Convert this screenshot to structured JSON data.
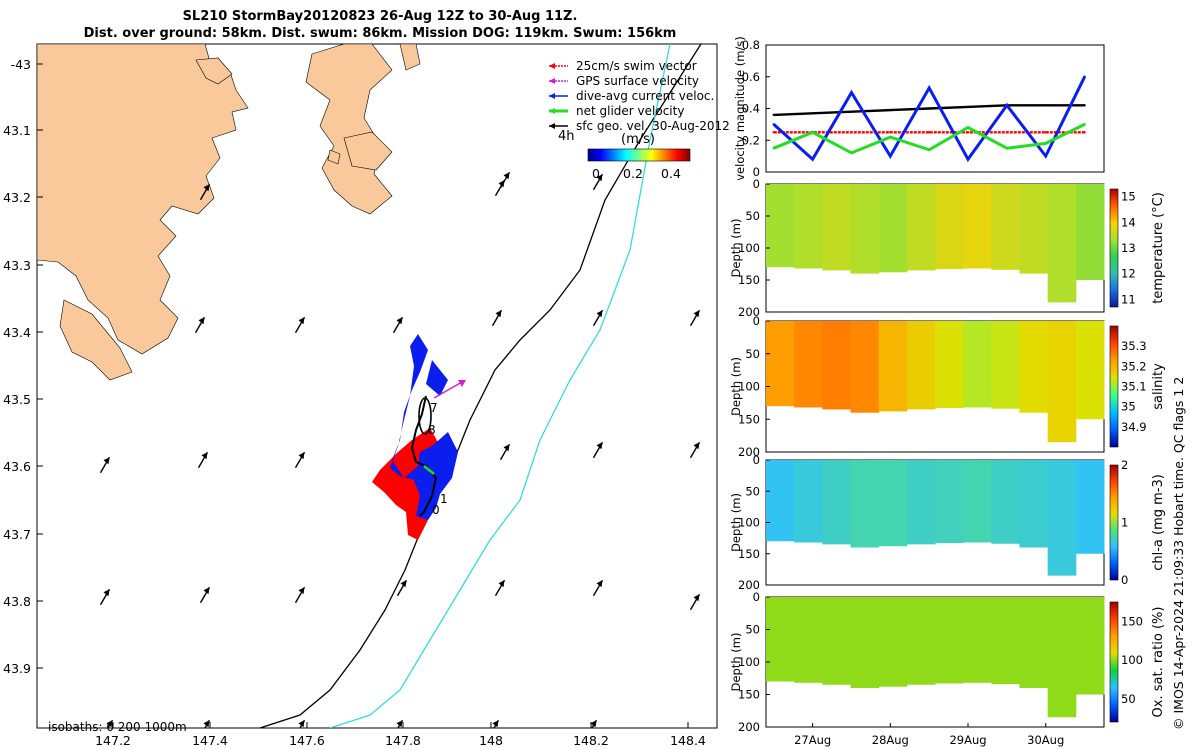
{
  "header": {
    "line1": "SL210 StormBay20120823 26-Aug 12Z to 30-Aug 11Z.",
    "line2": "Dist. over ground: 58km. Dist. swum: 86km. Mission DOG: 119km. Swum: 156km"
  },
  "credit": "© IMOS 14-Apr-2024 21:09:33 Hobart time. QC flags 1  2",
  "colors": {
    "land": "#f9c99c",
    "swim_vector": "#ff0000",
    "gps_velocity": "#d21cd2",
    "dive_avg": "#0a1ef0",
    "net_glider": "#22dd22",
    "sfc_geo": "#000000",
    "isobath_200": "#000000",
    "isobath_1000": "#33dddd"
  },
  "map": {
    "xticks": [
      "147.2",
      "147.4",
      "147.6",
      "147.8",
      "148",
      "148.2",
      "148.4"
    ],
    "yticks": [
      "-43",
      "43.1",
      "43.2",
      "43.3",
      "43.4",
      "43.5",
      "43.6",
      "43.7",
      "43.8",
      "43.9"
    ],
    "legend": [
      {
        "label": "25cm/s swim vector",
        "color": "#ff0000"
      },
      {
        "label": "GPS surface velocity",
        "color": "#d21cd2"
      },
      {
        "label": "dive-avg current veloc.",
        "color": "#0a1ef0"
      },
      {
        "label": "net glider velocity",
        "color": "#22dd22"
      },
      {
        "label": "sfc geo. vel. 30-Aug-2012",
        "color": "#000000"
      }
    ],
    "colorbar_left_label": "4h",
    "colorbar_unit": "(m/s)",
    "colorbar_ticks": [
      "0",
      "0.2",
      "0.4"
    ],
    "isobath_label": "isobaths: 0   200  1000m",
    "track_labels": [
      "7",
      "8",
      "1",
      "0"
    ]
  },
  "chart_data": [
    {
      "type": "line",
      "title": "",
      "ylabel": "velocity magnitude (m/s)",
      "ylim": [
        0,
        0.8
      ],
      "yticks": [
        "0",
        "0.2",
        "0.4",
        "0.6",
        "0.8"
      ],
      "x_days": [
        26.5,
        27.0,
        27.5,
        28.0,
        28.5,
        29.0,
        29.5,
        30.0,
        30.5
      ],
      "series": [
        {
          "name": "sfc geo. vel.",
          "color": "#000000",
          "values": [
            0.36,
            0.37,
            0.38,
            0.39,
            0.4,
            0.41,
            0.42,
            0.42,
            0.42
          ]
        },
        {
          "name": "swim vector",
          "color": "#ff0000",
          "values": [
            0.25,
            0.25,
            0.25,
            0.25,
            0.25,
            0.25,
            0.25,
            0.25,
            0.25
          ]
        },
        {
          "name": "dive-avg current",
          "color": "#0a1ef0",
          "values": [
            0.3,
            0.08,
            0.5,
            0.1,
            0.53,
            0.08,
            0.42,
            0.1,
            0.6
          ]
        },
        {
          "name": "net glider velocity",
          "color": "#22dd22",
          "values": [
            0.15,
            0.25,
            0.12,
            0.22,
            0.14,
            0.28,
            0.15,
            0.18,
            0.3
          ]
        }
      ]
    },
    {
      "type": "heatmap",
      "ylabel": "Depth (m)",
      "clabel": "temperature (°C)",
      "ylim": [
        200,
        0
      ],
      "yticks": [
        "0",
        "50",
        "100",
        "150",
        "200"
      ],
      "cticks": [
        "15",
        "14",
        "13",
        "12",
        "11"
      ],
      "xticks": [
        "27Aug",
        "28Aug",
        "29Aug",
        "30Aug"
      ],
      "crange": [
        10.7,
        15.3
      ],
      "columns": [
        13.3,
        13.4,
        13.5,
        13.4,
        13.3,
        13.5,
        13.7,
        13.8,
        13.6,
        13.5,
        13.4,
        13.2
      ]
    },
    {
      "type": "heatmap",
      "ylabel": "Depth (m)",
      "clabel": "salinity",
      "ylim": [
        200,
        0
      ],
      "yticks": [
        "0",
        "50",
        "100",
        "150",
        "200"
      ],
      "cticks": [
        "35.3",
        "35.2",
        "35.1",
        "35",
        "34.9"
      ],
      "xticks": [
        "27Aug",
        "28Aug",
        "29Aug",
        "30Aug"
      ],
      "crange": [
        34.8,
        35.4
      ],
      "columns": [
        35.23,
        35.25,
        35.26,
        35.25,
        35.2,
        35.17,
        35.14,
        35.12,
        35.13,
        35.15,
        35.16,
        35.14
      ]
    },
    {
      "type": "heatmap",
      "ylabel": "Depth (m)",
      "clabel": "chl-a (mg m-3)",
      "ylim": [
        200,
        0
      ],
      "yticks": [
        "0",
        "50",
        "100",
        "150",
        "200"
      ],
      "cticks": [
        "2",
        "1",
        "0"
      ],
      "xticks": [
        "27Aug",
        "28Aug",
        "29Aug",
        "30Aug"
      ],
      "crange": [
        0,
        2
      ],
      "columns": [
        0.6,
        0.65,
        0.7,
        0.75,
        0.75,
        0.7,
        0.72,
        0.75,
        0.7,
        0.68,
        0.65,
        0.6
      ]
    },
    {
      "type": "heatmap",
      "ylabel": "Depth (m)",
      "clabel": "Ox. sat. ratio (%)",
      "ylim": [
        200,
        0
      ],
      "yticks": [
        "0",
        "50",
        "100",
        "150",
        "200"
      ],
      "cticks": [
        "150",
        "100",
        "50"
      ],
      "xticks": [
        "27Aug",
        "28Aug",
        "29Aug",
        "30Aug"
      ],
      "crange": [
        20,
        175
      ],
      "columns": [
        100,
        100,
        100,
        100,
        100,
        100,
        100,
        100,
        100,
        100,
        100,
        100
      ]
    }
  ]
}
